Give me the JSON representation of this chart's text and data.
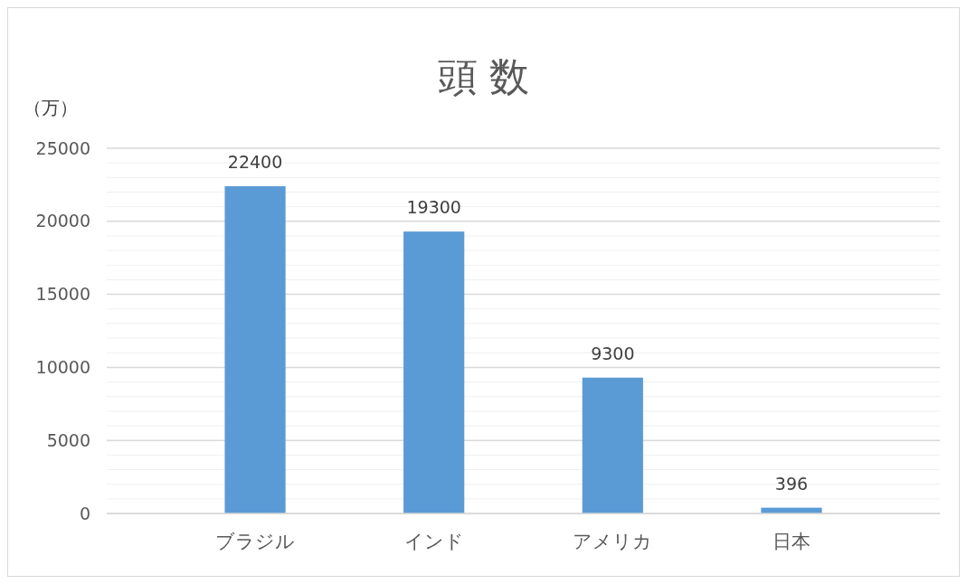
{
  "chart_data": {
    "type": "bar",
    "title": "頭 数",
    "ylabel": "（万）",
    "categories": [
      "ブラジル",
      "インド",
      "アメリカ",
      "日本"
    ],
    "values": [
      22400,
      19300,
      9300,
      396
    ],
    "color": "#5b9bd5",
    "ylim": [
      0,
      25000
    ],
    "yticks": [
      0,
      {
        "value": 1000,
        "label": null
      },
      {
        "value": 2000,
        "label": null
      },
      {
        "value": 3000,
        "label": null
      },
      {
        "value": 4000,
        "label": null
      },
      5000,
      {
        "value": 6000,
        "label": null
      },
      {
        "value": 7000,
        "label": null
      },
      {
        "value": 8000,
        "label": null
      },
      {
        "value": 9000,
        "label": null
      },
      10000,
      {
        "value": 11000,
        "label": null
      },
      {
        "value": 12000,
        "label": null
      },
      {
        "value": 13000,
        "label": null
      },
      {
        "value": 14000,
        "label": null
      },
      15000,
      {
        "value": 16000,
        "label": null
      },
      {
        "value": 17000,
        "label": null
      },
      {
        "value": 18000,
        "label": null
      },
      {
        "value": 19000,
        "label": null
      },
      20000,
      {
        "value": 21000,
        "label": null
      },
      {
        "value": 22000,
        "label": null
      },
      {
        "value": 23000,
        "label": null
      },
      {
        "value": 24000,
        "label": null
      },
      25000
    ],
    "grid": "y",
    "data_labels": true
  }
}
